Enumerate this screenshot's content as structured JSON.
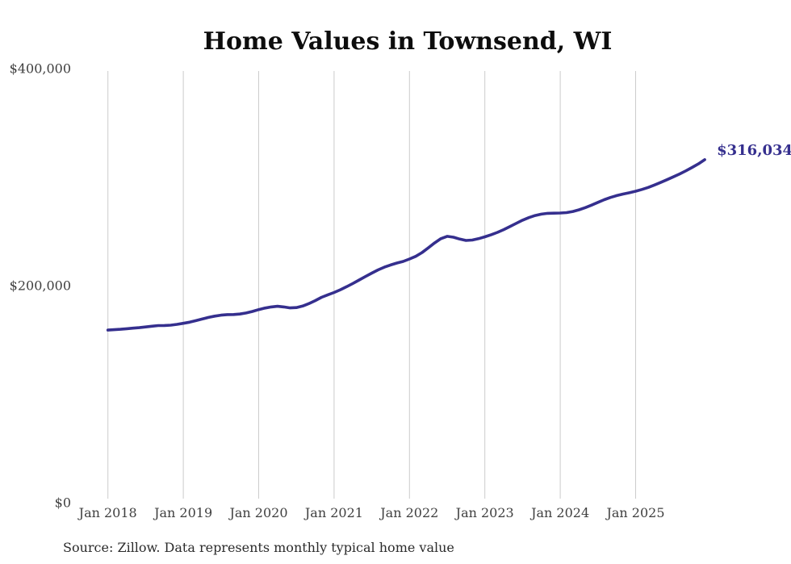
{
  "chart_data": {
    "type": "line",
    "title": "Home Values in Townsend, WI",
    "source": "Source: Zillow. Data represents monthly typical home value",
    "end_label": "$316,034",
    "latest_value": 316034,
    "frequency": "monthly",
    "start_month": "2018-01",
    "end_month": "2025-12",
    "ylim": [
      0,
      400000
    ],
    "grid": "vertical-only",
    "legend_position": "none",
    "y_ticks": [
      {
        "label": "$0",
        "value": 0
      },
      {
        "label": "$200,000",
        "value": 200000
      },
      {
        "label": "$400,000",
        "value": 400000
      }
    ],
    "x_ticks": [
      {
        "label": "Jan 2018",
        "month_index": 0
      },
      {
        "label": "Jan 2019",
        "month_index": 12
      },
      {
        "label": "Jan 2020",
        "month_index": 24
      },
      {
        "label": "Jan 2021",
        "month_index": 36
      },
      {
        "label": "Jan 2022",
        "month_index": 48
      },
      {
        "label": "Jan 2023",
        "month_index": 60
      },
      {
        "label": "Jan 2024",
        "month_index": 72
      },
      {
        "label": "Jan 2025",
        "month_index": 84
      }
    ],
    "values": [
      159000,
      159400,
      159800,
      160300,
      160800,
      161300,
      161900,
      162600,
      163200,
      163300,
      163600,
      164300,
      165300,
      166300,
      167700,
      169200,
      170700,
      171900,
      172800,
      173300,
      173400,
      173800,
      174800,
      176200,
      177900,
      179300,
      180400,
      181000,
      180400,
      179500,
      179800,
      181200,
      183500,
      186200,
      189200,
      191500,
      193700,
      196200,
      199000,
      202000,
      205200,
      208400,
      211500,
      214500,
      217000,
      219000,
      220800,
      222300,
      224500,
      227000,
      230500,
      234800,
      239300,
      243300,
      245400,
      244600,
      242900,
      241600,
      242000,
      243300,
      245000,
      246900,
      249100,
      251600,
      254400,
      257400,
      260300,
      262700,
      264600,
      265900,
      266600,
      266800,
      266900,
      267300,
      268300,
      269900,
      271900,
      274200,
      276700,
      279200,
      281300,
      283000,
      284400,
      285600,
      287000,
      288600,
      290500,
      292700,
      295100,
      297600,
      300200,
      302900,
      305800,
      308900,
      312200,
      316034
    ],
    "colors": {
      "line": "#352f8e",
      "grid": "#cccccc",
      "axis_text": "#3f3f3f",
      "title": "#0d0d0d",
      "source_text": "#2b2b2b",
      "background": "#ffffff"
    }
  }
}
